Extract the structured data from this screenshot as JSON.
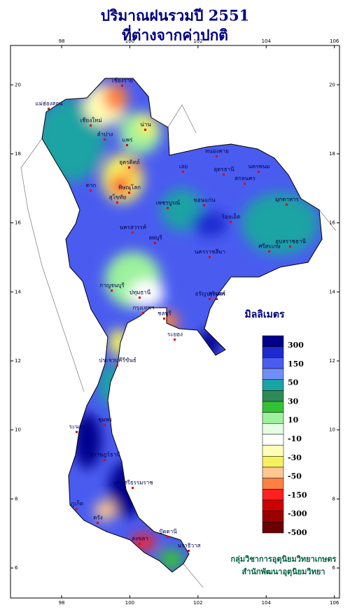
{
  "title": [
    "ปริมาณฝนรวมปี 2551",
    "ที่ต่างจากค่าปกติ"
  ],
  "map": {
    "lon_range": [
      96.5,
      106.15
    ],
    "lat_range": [
      5.13,
      21.14
    ],
    "lon_ticks": [
      98,
      100,
      102,
      104,
      106
    ],
    "lat_ticks": [
      20,
      18,
      16,
      14,
      12,
      10,
      8,
      6
    ],
    "places": [
      "เชียงราย",
      "แม่ฮ่องสอน",
      "เชียงใหม่",
      "น่าน",
      "ลำปาง",
      "แพร่",
      "อุตรดิตถ์",
      "ตาก",
      "พิษณุโลก",
      "เพชรบูรณ์",
      "สุโขทัย",
      "เลย",
      "หนองคาย",
      "อุดรธานี",
      "นครพนม",
      "สกลนคร",
      "มุกดาหาร",
      "ขอนแก่น",
      "ร้อยเอ็ด",
      "อุบลราชธานี",
      "นครสวรรค์",
      "ลพบุรี",
      "นครราชสีมา",
      "สุรินทร์",
      "ศรีสะเกษ",
      "กาญจนบุรี",
      "ปทุมธานี",
      "กรุงเทพฯ",
      "ชลบุรี",
      "ระยอง",
      "อรัญประเทศ",
      "ประจวบคีรีขันธ์",
      "ชุมพร",
      "ระนอง",
      "สุราษฎร์ธานี",
      "นครศรีธรรมราช",
      "ภูเก็ต",
      "ตรัง",
      "สงขลา",
      "ปัตตานี",
      "นราธิวาส"
    ]
  },
  "legend": {
    "title": "มิลลิเมตร",
    "colors": [
      "#00008b",
      "#1c2ad0",
      "#4a5cf0",
      "#6f8ff6",
      "#1aa3a3",
      "#2e8b57",
      "#34c234",
      "#9cf29c",
      "#e4ffe4",
      "#ffffff",
      "#ffffb8",
      "#f5f060",
      "#ffc890",
      "#ff8040",
      "#ff2020",
      "#cc0000",
      "#990000",
      "#6a0000"
    ],
    "levels": [
      300,
      150,
      50,
      30,
      10,
      -10,
      -30,
      -50,
      -150,
      -300,
      -500
    ]
  },
  "credits": [
    "กลุ่มวิชาการอุตุนิยมวิทยาเกษตร",
    "สำนักพัฒนาอุตุนิยมวิทยา"
  ]
}
